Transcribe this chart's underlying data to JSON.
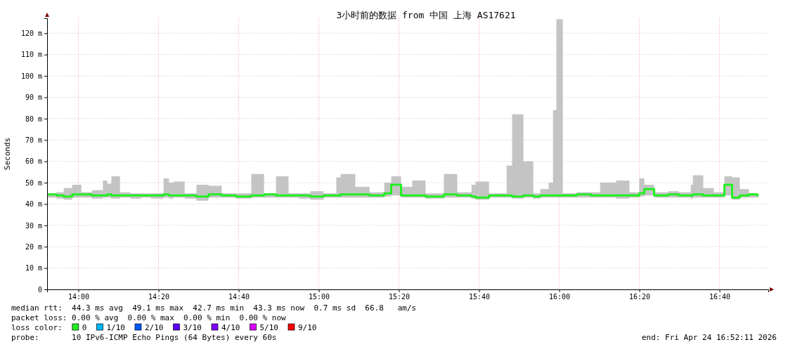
{
  "chart_data": {
    "type": "step",
    "title": "3小时前的数据 from 中国 上海 AS17621",
    "ylabel": "Seconds",
    "xlim": [
      13.8697,
      16.8697
    ],
    "xticks": [
      {
        "value": 14,
        "label": "14:00"
      },
      {
        "value": 14.3333,
        "label": "14:20"
      },
      {
        "value": 14.6667,
        "label": "14:40"
      },
      {
        "value": 15,
        "label": "15:00"
      },
      {
        "value": 15.3333,
        "label": "15:20"
      },
      {
        "value": 15.6667,
        "label": "15:40"
      },
      {
        "value": 16,
        "label": "16:00"
      },
      {
        "value": 16.3333,
        "label": "16:20"
      },
      {
        "value": 16.6667,
        "label": "16:40"
      }
    ],
    "ylim": [
      0,
      127
    ],
    "yticks": [
      0,
      {
        "value": 10,
        "label": "10 m"
      },
      {
        "value": 20,
        "label": "20 m"
      },
      {
        "value": 30,
        "label": "30 m"
      },
      {
        "value": 40,
        "label": "40 m"
      },
      {
        "value": 50,
        "label": "50 m"
      },
      {
        "value": 60,
        "label": "60 m"
      },
      {
        "value": 70,
        "label": "70 m"
      },
      {
        "value": 80,
        "label": "80 m"
      },
      {
        "value": 90,
        "label": "90 m"
      },
      {
        "value": 100,
        "label": "100 m"
      },
      {
        "value": 110,
        "label": "110 m"
      },
      {
        "value": 120,
        "label": "120 m"
      }
    ],
    "grid": true,
    "legend": "bottom left",
    "legend_title": "loss color:",
    "series": [
      {
        "name": "0",
        "color": "#22ee22",
        "x": [
          13.871,
          13.909,
          13.939,
          13.974,
          14.012,
          14.056,
          14.102,
          14.12,
          14.137,
          14.173,
          14.216,
          14.26,
          14.301,
          14.354,
          14.377,
          14.395,
          14.442,
          14.491,
          14.541,
          14.596,
          14.655,
          14.719,
          14.772,
          14.822,
          14.874,
          14.918,
          14.965,
          15.02,
          15.073,
          15.091,
          15.152,
          15.211,
          15.272,
          15.301,
          15.342,
          15.389,
          15.444,
          15.52,
          15.576,
          15.635,
          15.652,
          15.708,
          15.781,
          15.804,
          15.851,
          15.892,
          15.921,
          15.956,
          15.974,
          15.988,
          16.015,
          16.073,
          16.132,
          16.17,
          16.237,
          16.292,
          16.333,
          16.354,
          16.395,
          16.453,
          16.497,
          16.547,
          16.556,
          16.599,
          16.643,
          16.687,
          16.719,
          16.751,
          16.789,
          16.825
        ],
        "values": [
          44.5,
          44,
          43.5,
          44.5,
          44.5,
          44,
          44,
          44.5,
          44,
          44,
          44,
          44,
          44,
          44.5,
          44,
          44,
          44,
          43.5,
          44.5,
          44,
          43.5,
          44,
          44.5,
          44,
          44,
          44,
          43.5,
          44,
          44,
          44.5,
          44.5,
          44,
          45,
          49,
          44,
          44,
          43.5,
          44.5,
          44,
          43.5,
          43,
          44,
          44,
          43.5,
          44,
          43.5,
          44,
          44,
          44,
          44,
          44,
          44.5,
          44,
          44,
          44,
          44,
          45,
          47,
          44,
          44.5,
          44,
          44,
          44.5,
          44,
          44,
          49,
          43,
          44,
          44.5,
          43.5
        ],
        "lower": [
          43,
          42.5,
          42,
          43,
          43,
          42.5,
          43,
          43,
          42.5,
          43,
          42.5,
          43,
          42.5,
          43,
          42.5,
          43,
          42.5,
          41.5,
          43,
          43,
          42.5,
          43,
          43,
          43,
          43,
          42.5,
          42,
          43,
          43,
          43,
          43,
          43,
          43.5,
          44,
          43,
          43,
          42.5,
          43,
          43,
          42.5,
          42,
          43,
          43,
          42.5,
          43,
          42.5,
          43,
          43,
          43,
          43,
          43,
          43,
          43,
          43,
          42.5,
          43,
          43.5,
          44,
          43,
          43,
          43,
          42.5,
          43,
          43,
          43,
          44,
          42,
          43,
          43,
          42.5
        ],
        "upper": [
          45,
          45.5,
          47.5,
          49,
          45.5,
          46.5,
          51,
          49.5,
          53,
          45.5,
          45,
          45,
          45,
          52,
          50,
          50.5,
          45,
          49,
          48.5,
          45,
          45,
          54,
          45,
          53,
          45,
          45,
          46,
          45,
          52.5,
          54,
          48,
          45.5,
          50,
          53,
          48,
          51,
          45,
          54,
          45.5,
          49,
          50.5,
          45,
          58,
          82,
          60,
          45,
          47,
          50,
          84,
          126.5,
          45,
          45.5,
          45.5,
          50,
          51,
          45.5,
          52,
          49,
          45.5,
          46,
          45.5,
          49,
          53.5,
          47.5,
          45.5,
          53,
          52.5,
          47,
          45,
          45
        ]
      },
      {
        "name": "1/10",
        "color": "#00b8ff"
      },
      {
        "name": "2/10",
        "color": "#0059ff"
      },
      {
        "name": "3/10",
        "color": "#5e00ff"
      },
      {
        "name": "4/10",
        "color": "#7e00ff"
      },
      {
        "name": "5/10",
        "color": "#dd00ff"
      },
      {
        "name": "9/10",
        "color": "#ff0000"
      }
    ],
    "annotations": [
      "median rtt:  44.3 ms avg  49.1 ms max  42.7 ms min  43.3 ms now  0.7 ms sd  66.8   am/s",
      "packet loss: 0.00 % avg  0.00 % max  0.00 % min  0.00 % now",
      "probe:       10 IPv6-ICMP Echo Pings (64 Bytes) every 60s",
      "end: Fri Apr 24 16:52:11 2026"
    ]
  }
}
